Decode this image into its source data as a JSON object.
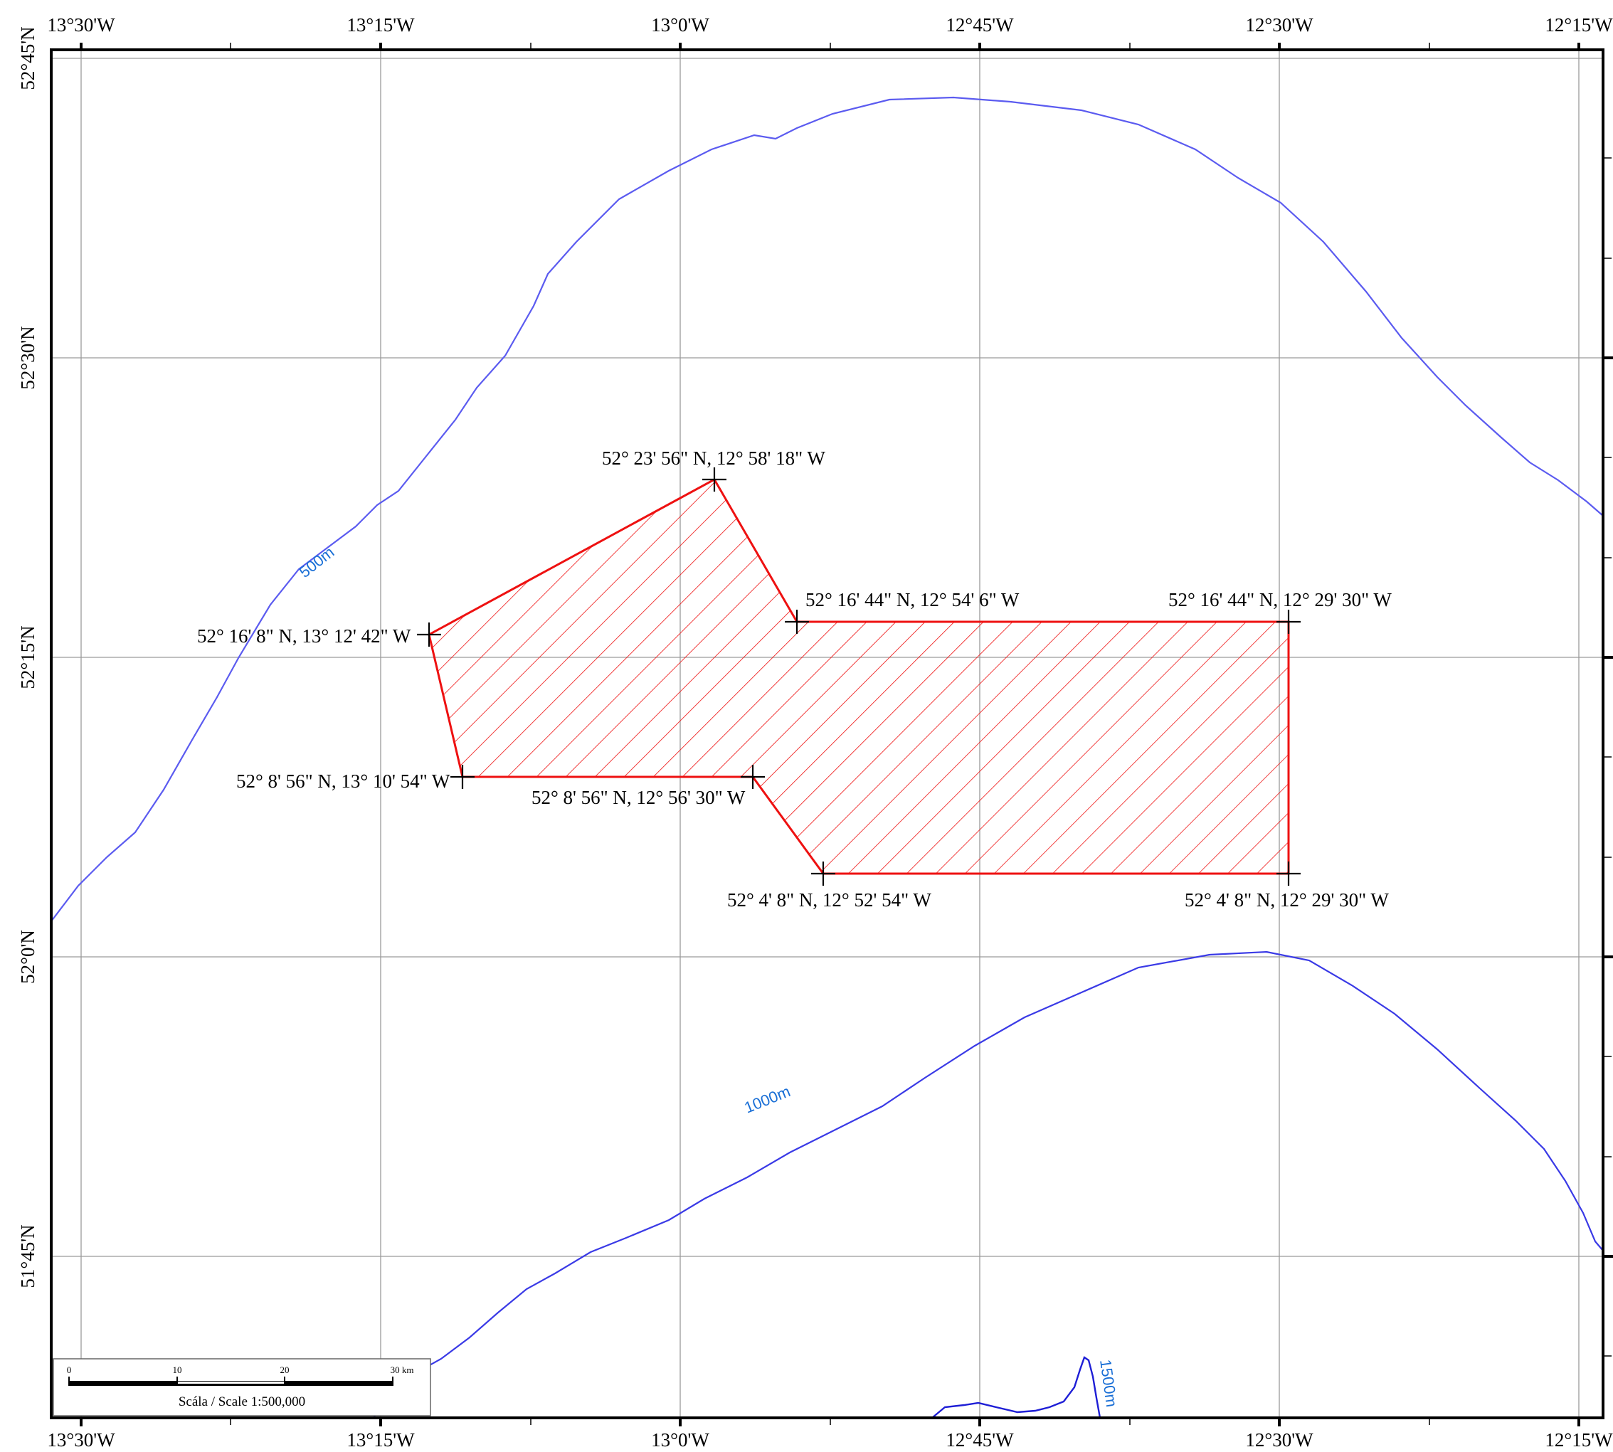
{
  "map": {
    "longitudes": [
      "13°30'W",
      "13°15'W",
      "13°0'W",
      "12°45'W",
      "12°30'W",
      "12°15'W"
    ],
    "latitudes": [
      "52°45'N",
      "52°30'N",
      "52°15'N",
      "52°0'N",
      "51°45'N"
    ]
  },
  "colors": {
    "contour": "#5b5bf0",
    "contour_deep": "#1e1ed6",
    "contour_label": "#1a6fd6",
    "area": "#ee1111",
    "grid": "#9a9a9a",
    "frame": "#000000"
  },
  "contours": [
    {
      "label": "500m"
    },
    {
      "label": "1000m"
    },
    {
      "label": "1500m"
    }
  ],
  "area": {
    "vertices": [
      {
        "label": "52° 23' 56\" N, 12° 58' 18\" W"
      },
      {
        "label": "52° 16' 44\" N, 12° 54' 6\" W"
      },
      {
        "label": "52° 16' 44\" N, 12° 29' 30\" W"
      },
      {
        "label": "52° 4' 8\" N, 12° 29' 30\" W"
      },
      {
        "label": "52° 4' 8\" N, 12° 52' 54\" W"
      },
      {
        "label": "52° 8' 56\" N, 12° 56' 30\" W"
      },
      {
        "label": "52° 8' 56\" N, 13° 10' 54\" W"
      },
      {
        "label": "52° 16' 8\" N, 13° 12' 42\" W"
      }
    ]
  },
  "scale_bar": {
    "ticks": [
      "0",
      "10",
      "20",
      "30 km"
    ],
    "title": "Scála / Scale  1:500,000"
  }
}
